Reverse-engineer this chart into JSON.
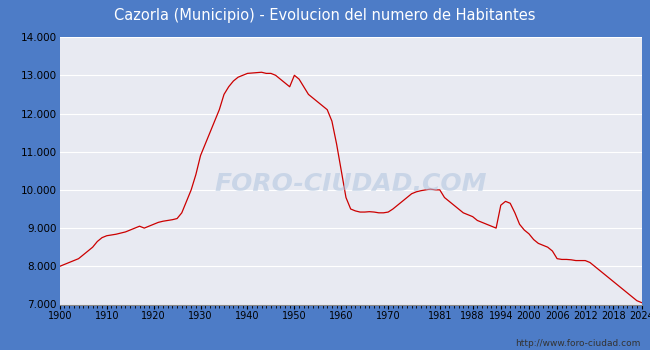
{
  "title": "Cazorla (Municipio) - Evolucion del numero de Habitantes",
  "title_bg_color": "#4d7cc7",
  "title_text_color": "white",
  "line_color": "#cc0000",
  "outer_bg_color": "#4d7cc7",
  "plot_bg_color": "#e8eaf2",
  "grid_color": "white",
  "watermark": "FORO-CIUDAD.COM",
  "footer": "http://www.foro-ciudad.com",
  "xlim": [
    1900,
    2024
  ],
  "ylim": [
    7000,
    14000
  ],
  "yticks": [
    7000,
    8000,
    9000,
    10000,
    11000,
    12000,
    13000,
    14000
  ],
  "xticks": [
    1900,
    1910,
    1920,
    1930,
    1940,
    1950,
    1960,
    1970,
    1981,
    1988,
    1994,
    2000,
    2006,
    2012,
    2018,
    2024
  ],
  "data": [
    [
      1900,
      8000
    ],
    [
      1901,
      8050
    ],
    [
      1902,
      8100
    ],
    [
      1903,
      8150
    ],
    [
      1904,
      8200
    ],
    [
      1905,
      8300
    ],
    [
      1906,
      8400
    ],
    [
      1907,
      8500
    ],
    [
      1908,
      8650
    ],
    [
      1909,
      8750
    ],
    [
      1910,
      8800
    ],
    [
      1911,
      8820
    ],
    [
      1912,
      8840
    ],
    [
      1913,
      8870
    ],
    [
      1914,
      8900
    ],
    [
      1915,
      8950
    ],
    [
      1916,
      9000
    ],
    [
      1917,
      9050
    ],
    [
      1918,
      9000
    ],
    [
      1919,
      9050
    ],
    [
      1920,
      9100
    ],
    [
      1921,
      9150
    ],
    [
      1922,
      9180
    ],
    [
      1923,
      9200
    ],
    [
      1924,
      9220
    ],
    [
      1925,
      9250
    ],
    [
      1926,
      9400
    ],
    [
      1927,
      9700
    ],
    [
      1928,
      10000
    ],
    [
      1929,
      10400
    ],
    [
      1930,
      10900
    ],
    [
      1931,
      11200
    ],
    [
      1932,
      11500
    ],
    [
      1933,
      11800
    ],
    [
      1934,
      12100
    ],
    [
      1935,
      12500
    ],
    [
      1936,
      12700
    ],
    [
      1937,
      12850
    ],
    [
      1938,
      12950
    ],
    [
      1939,
      13000
    ],
    [
      1940,
      13050
    ],
    [
      1941,
      13060
    ],
    [
      1942,
      13070
    ],
    [
      1943,
      13080
    ],
    [
      1944,
      13050
    ],
    [
      1945,
      13050
    ],
    [
      1946,
      13000
    ],
    [
      1947,
      12900
    ],
    [
      1948,
      12800
    ],
    [
      1949,
      12700
    ],
    [
      1950,
      13000
    ],
    [
      1951,
      12900
    ],
    [
      1952,
      12700
    ],
    [
      1953,
      12500
    ],
    [
      1954,
      12400
    ],
    [
      1955,
      12300
    ],
    [
      1956,
      12200
    ],
    [
      1957,
      12100
    ],
    [
      1958,
      11800
    ],
    [
      1959,
      11200
    ],
    [
      1960,
      10500
    ],
    [
      1961,
      9800
    ],
    [
      1962,
      9500
    ],
    [
      1963,
      9450
    ],
    [
      1964,
      9420
    ],
    [
      1965,
      9420
    ],
    [
      1966,
      9430
    ],
    [
      1967,
      9420
    ],
    [
      1968,
      9400
    ],
    [
      1969,
      9400
    ],
    [
      1970,
      9420
    ],
    [
      1971,
      9500
    ],
    [
      1972,
      9600
    ],
    [
      1973,
      9700
    ],
    [
      1974,
      9800
    ],
    [
      1975,
      9900
    ],
    [
      1976,
      9950
    ],
    [
      1977,
      9980
    ],
    [
      1978,
      10000
    ],
    [
      1979,
      10020
    ],
    [
      1980,
      10000
    ],
    [
      1981,
      10000
    ],
    [
      1982,
      9800
    ],
    [
      1983,
      9700
    ],
    [
      1984,
      9600
    ],
    [
      1985,
      9500
    ],
    [
      1986,
      9400
    ],
    [
      1987,
      9350
    ],
    [
      1988,
      9300
    ],
    [
      1989,
      9200
    ],
    [
      1990,
      9150
    ],
    [
      1991,
      9100
    ],
    [
      1992,
      9050
    ],
    [
      1993,
      9000
    ],
    [
      1994,
      9600
    ],
    [
      1995,
      9700
    ],
    [
      1996,
      9650
    ],
    [
      1997,
      9400
    ],
    [
      1998,
      9100
    ],
    [
      1999,
      8950
    ],
    [
      2000,
      8850
    ],
    [
      2001,
      8700
    ],
    [
      2002,
      8600
    ],
    [
      2003,
      8550
    ],
    [
      2004,
      8500
    ],
    [
      2005,
      8400
    ],
    [
      2006,
      8200
    ],
    [
      2007,
      8180
    ],
    [
      2008,
      8180
    ],
    [
      2009,
      8170
    ],
    [
      2010,
      8150
    ],
    [
      2011,
      8150
    ],
    [
      2012,
      8150
    ],
    [
      2013,
      8100
    ],
    [
      2014,
      8000
    ],
    [
      2015,
      7900
    ],
    [
      2016,
      7800
    ],
    [
      2017,
      7700
    ],
    [
      2018,
      7600
    ],
    [
      2019,
      7500
    ],
    [
      2020,
      7400
    ],
    [
      2021,
      7300
    ],
    [
      2022,
      7200
    ],
    [
      2023,
      7100
    ],
    [
      2024,
      7050
    ]
  ]
}
